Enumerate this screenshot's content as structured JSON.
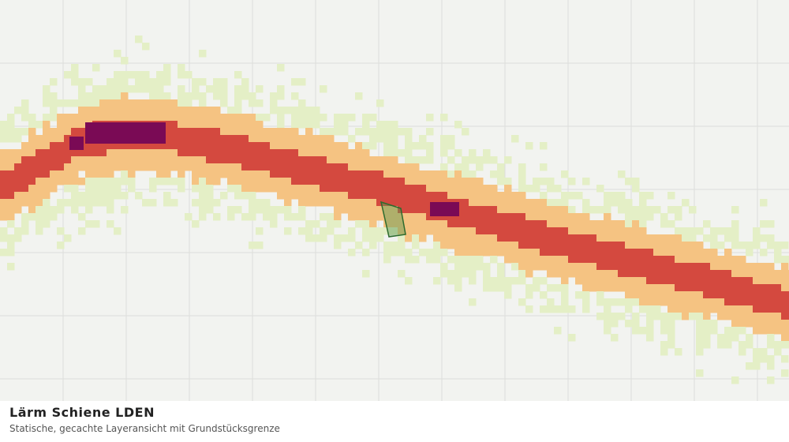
{
  "caption": {
    "title": "Lärm Schiene LDEN",
    "subtitle": "Statische, gecachte Layeransicht mit Grundstücksgrenze"
  }
}
